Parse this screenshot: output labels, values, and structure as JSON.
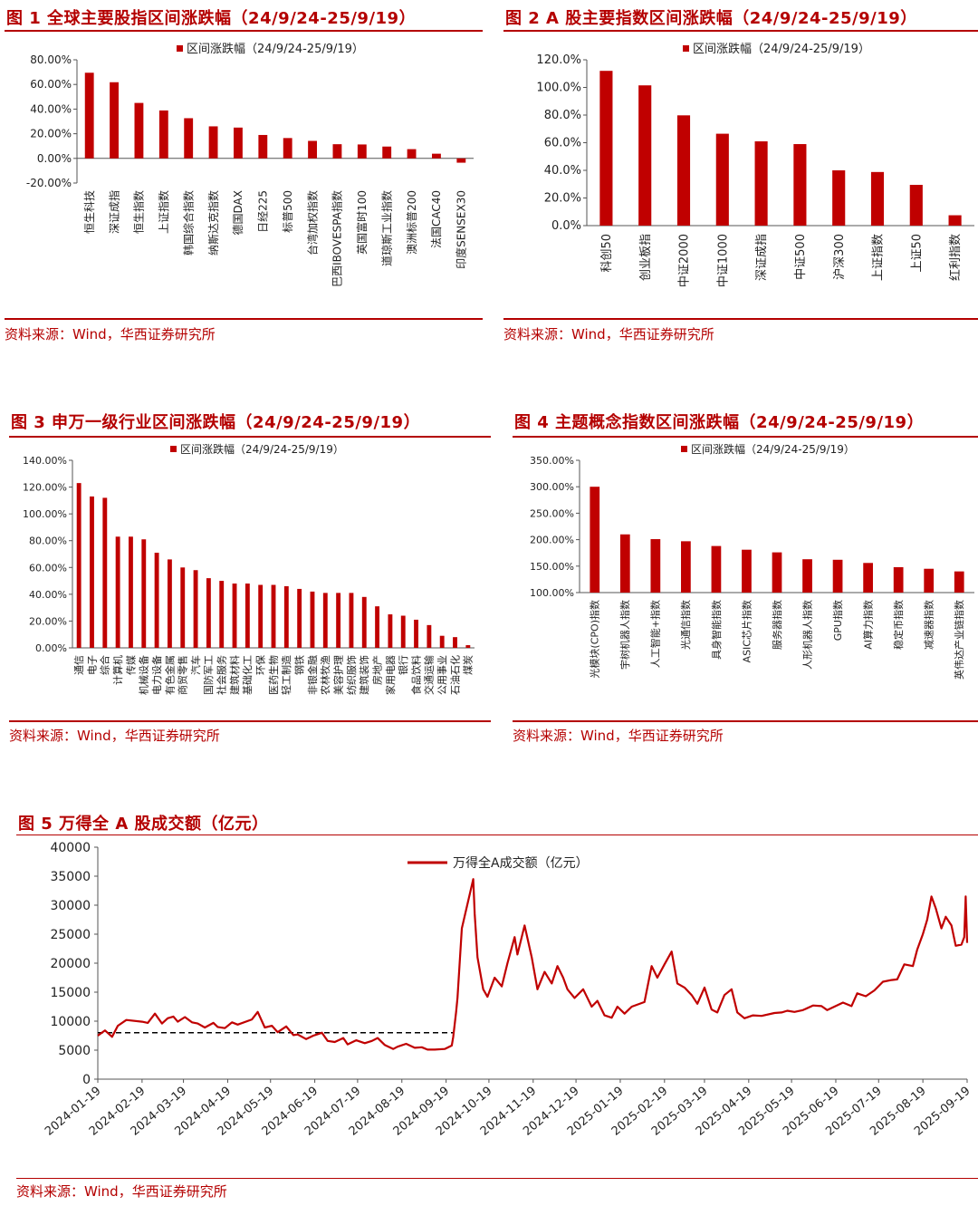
{
  "figures": [
    {
      "title": "图 1 全球主要股指区间涨跌幅（24/9/24-25/9/19）",
      "source": "资料来源：Wind，华西证券研究所"
    },
    {
      "title": "图 2 A 股主要指数区间涨跌幅（24/9/24-25/9/19）",
      "source": "资料来源：Wind，华西证券研究所"
    },
    {
      "title": "图 3 申万一级行业区间涨跌幅（24/9/24-25/9/19）",
      "source": "资料来源：Wind，华西证券研究所"
    },
    {
      "title": "图 4 主题概念指数区间涨跌幅（24/9/24-25/9/19）",
      "source": "资料来源：Wind，华西证券研究所"
    },
    {
      "title": "图 5 万得全 A 股成交额（亿元）",
      "source": "资料来源：Wind，华西证券研究所"
    }
  ],
  "colors": {
    "bar": "#c00000",
    "line": "#c00000",
    "title": "#b40000",
    "rule": "#b40000",
    "dash": "#000000"
  },
  "chart_data": [
    {
      "type": "bar",
      "legend": "区间涨跌幅（24/9/24-25/9/19）",
      "categories": [
        "恒生科技",
        "深证成指",
        "恒生指数",
        "上证指数",
        "韩国综合指数",
        "纳斯达克指数",
        "德国DAX",
        "日经225",
        "标普500",
        "台湾加权指数",
        "巴西IBOVESPA指数",
        "英国富时100",
        "道琼斯工业指数",
        "澳洲标普200",
        "法国CAC40",
        "印度SENSEX30"
      ],
      "values": [
        69.5,
        61.8,
        45.0,
        38.9,
        32.6,
        26.0,
        25.0,
        19.0,
        16.5,
        14.2,
        11.5,
        11.3,
        9.6,
        7.5,
        3.8,
        -3.5
      ],
      "ylim": [
        -20,
        80
      ],
      "yticks": [
        "-20.00%",
        "0.00%",
        "20.00%",
        "40.00%",
        "60.00%",
        "80.00%"
      ],
      "legend_position": "top"
    },
    {
      "type": "bar",
      "legend": "区间涨跌幅（24/9/24-25/9/19）",
      "categories": [
        "科创50",
        "创业板指",
        "中证2000",
        "中证1000",
        "深证成指",
        "中证500",
        "沪深300",
        "上证指数",
        "上证50",
        "红利指数"
      ],
      "values": [
        112.0,
        101.5,
        79.8,
        66.5,
        61.0,
        59.0,
        40.0,
        38.8,
        29.5,
        7.5
      ],
      "ylim": [
        0,
        120
      ],
      "yticks": [
        "0.0%",
        "20.0%",
        "40.0%",
        "60.0%",
        "80.0%",
        "100.0%",
        "120.0%"
      ],
      "legend_position": "top"
    },
    {
      "type": "bar",
      "legend": "区间涨跌幅（24/9/24-25/9/19）",
      "categories": [
        "通信",
        "电子",
        "综合",
        "计算机",
        "传媒",
        "机械设备",
        "电力设备",
        "有色金属",
        "商贸零售",
        "汽车",
        "国防军工",
        "社会服务",
        "建筑材料",
        "基础化工",
        "环保",
        "医药生物",
        "轻工制造",
        "钢铁",
        "非银金融",
        "农林牧渔",
        "美容护理",
        "纺织服饰",
        "建筑装饰",
        "房地产",
        "家用电器",
        "银行",
        "食品饮料",
        "交通运输",
        "公用事业",
        "石油石化",
        "煤炭"
      ],
      "values": [
        123,
        113,
        112,
        83,
        83,
        81,
        71,
        66,
        60,
        58,
        52,
        50,
        48,
        48,
        47,
        47,
        46,
        44,
        42,
        41,
        41,
        41,
        38,
        31,
        25,
        24,
        21,
        17,
        9,
        8,
        2
      ],
      "ylim": [
        0,
        140
      ],
      "yticks": [
        "0.00%",
        "20.00%",
        "40.00%",
        "60.00%",
        "80.00%",
        "100.00%",
        "120.00%",
        "140.00%"
      ],
      "legend_position": "top"
    },
    {
      "type": "bar",
      "legend": "区间涨跌幅（24/9/24-25/9/19）",
      "categories": [
        "光模块(CPO)指数",
        "宇树机器人指数",
        "人工智能+指数",
        "光通信指数",
        "具身智能指数",
        "ASIC芯片指数",
        "服务器指数",
        "人形机器人指数",
        "GPU指数",
        "AI算力指数",
        "稳定币指数",
        "减速器指数",
        "英伟达产业链指数"
      ],
      "values": [
        300,
        210,
        201,
        197,
        188,
        181,
        176,
        163,
        162,
        156,
        148,
        145,
        140
      ],
      "ylim": [
        100,
        350
      ],
      "yticks": [
        "100.00%",
        "150.00%",
        "200.00%",
        "250.00%",
        "300.00%",
        "350.00%"
      ],
      "legend_position": "top"
    },
    {
      "type": "line",
      "legend": "万得全A成交额（亿元）",
      "ylim": [
        0,
        40000
      ],
      "yticks": [
        "0",
        "5000",
        "10000",
        "15000",
        "20000",
        "25000",
        "30000",
        "35000",
        "40000"
      ],
      "xticks": [
        "2024-01-19",
        "2024-02-19",
        "2024-03-19",
        "2024-04-19",
        "2024-05-19",
        "2024-06-19",
        "2024-07-19",
        "2024-08-19",
        "2024-09-19",
        "2024-10-19",
        "2024-11-19",
        "2024-12-19",
        "2025-01-19",
        "2025-02-19",
        "2025-03-19",
        "2025-04-19",
        "2025-05-19",
        "2025-06-19",
        "2025-07-19",
        "2025-08-19",
        "2025-09-19"
      ],
      "reference_level": 8000,
      "reference_end": "2024-09-24",
      "x": [
        "2024-01-19",
        "2024-01-24",
        "2024-01-29",
        "2024-02-02",
        "2024-02-08",
        "2024-02-19",
        "2024-02-23",
        "2024-02-28",
        "2024-03-04",
        "2024-03-08",
        "2024-03-12",
        "2024-03-15",
        "2024-03-20",
        "2024-03-25",
        "2024-03-29",
        "2024-04-03",
        "2024-04-09",
        "2024-04-12",
        "2024-04-17",
        "2024-04-22",
        "2024-04-26",
        "2024-05-06",
        "2024-05-10",
        "2024-05-15",
        "2024-05-20",
        "2024-05-24",
        "2024-05-30",
        "2024-06-04",
        "2024-06-07",
        "2024-06-13",
        "2024-06-18",
        "2024-06-24",
        "2024-06-28",
        "2024-07-03",
        "2024-07-09",
        "2024-07-12",
        "2024-07-18",
        "2024-07-24",
        "2024-07-29",
        "2024-08-02",
        "2024-08-07",
        "2024-08-13",
        "2024-08-16",
        "2024-08-22",
        "2024-08-28",
        "2024-09-02",
        "2024-09-06",
        "2024-09-11",
        "2024-09-18",
        "2024-09-23",
        "2024-09-24",
        "2024-09-26",
        "2024-09-27",
        "2024-09-30",
        "2024-10-08",
        "2024-10-09",
        "2024-10-11",
        "2024-10-15",
        "2024-10-18",
        "2024-10-23",
        "2024-10-28",
        "2024-11-01",
        "2024-11-06",
        "2024-11-08",
        "2024-11-13",
        "2024-11-18",
        "2024-11-22",
        "2024-11-27",
        "2024-12-02",
        "2024-12-06",
        "2024-12-10",
        "2024-12-13",
        "2024-12-18",
        "2024-12-24",
        "2024-12-30",
        "2025-01-03",
        "2025-01-08",
        "2025-01-13",
        "2025-01-17",
        "2025-01-22",
        "2025-01-27",
        "2025-02-05",
        "2025-02-10",
        "2025-02-14",
        "2025-02-19",
        "2025-02-24",
        "2025-02-28",
        "2025-03-05",
        "2025-03-10",
        "2025-03-14",
        "2025-03-19",
        "2025-03-24",
        "2025-03-28",
        "2025-04-02",
        "2025-04-07",
        "2025-04-11",
        "2025-04-16",
        "2025-04-22",
        "2025-04-28",
        "2025-05-07",
        "2025-05-12",
        "2025-05-16",
        "2025-05-21",
        "2025-05-27",
        "2025-06-03",
        "2025-06-09",
        "2025-06-13",
        "2025-06-18",
        "2025-06-24",
        "2025-06-30",
        "2025-07-04",
        "2025-07-10",
        "2025-07-16",
        "2025-07-22",
        "2025-07-28",
        "2025-08-01",
        "2025-08-06",
        "2025-08-12",
        "2025-08-15",
        "2025-08-19",
        "2025-08-22",
        "2025-08-25",
        "2025-08-28",
        "2025-09-01",
        "2025-09-04",
        "2025-09-08",
        "2025-09-11",
        "2025-09-15",
        "2025-09-17",
        "2025-09-18",
        "2025-09-19"
      ],
      "values": [
        7500,
        8400,
        7300,
        9200,
        10200,
        9900,
        9700,
        11300,
        9600,
        10500,
        10800,
        9900,
        10700,
        9800,
        9600,
        8900,
        9700,
        9000,
        8800,
        9800,
        9400,
        10300,
        11600,
        8900,
        9200,
        8100,
        9100,
        7600,
        7700,
        6900,
        7500,
        8000,
        6600,
        6400,
        7100,
        6000,
        6700,
        6200,
        6600,
        7100,
        5900,
        5200,
        5600,
        6100,
        5400,
        5500,
        5100,
        5100,
        5200,
        5800,
        7300,
        11600,
        14000,
        26000,
        34500,
        28500,
        21000,
        15500,
        14200,
        17500,
        16000,
        20000,
        24500,
        21500,
        26500,
        21000,
        15500,
        18500,
        16500,
        19500,
        17500,
        15500,
        14000,
        15500,
        12500,
        13500,
        11000,
        10600,
        12500,
        11300,
        12500,
        13300,
        19500,
        17500,
        19800,
        22000,
        16500,
        15800,
        14500,
        13000,
        15800,
        12000,
        11500,
        14500,
        15500,
        11500,
        10500,
        11000,
        10900,
        11400,
        11500,
        11800,
        11600,
        11900,
        12700,
        12600,
        11900,
        12500,
        13200,
        12600,
        14800,
        14300,
        15300,
        16800,
        17100,
        17200,
        19800,
        19500,
        22300,
        25000,
        27500,
        31500,
        29500,
        26000,
        28000,
        26500,
        23000,
        23200,
        24500,
        31500,
        23500
      ]
    }
  ]
}
